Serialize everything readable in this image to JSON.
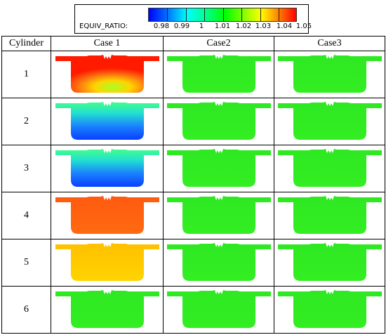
{
  "legend": {
    "title": "EQUIV_RATIO:",
    "labels": [
      "0.98",
      "0.99",
      "1",
      "1.01",
      "1.02",
      "1.03",
      "1.04",
      "1.05"
    ]
  },
  "table": {
    "headers": [
      "Cylinder",
      "Case 1",
      "Case2",
      "Case3"
    ],
    "rows": [
      {
        "cylinder": "1",
        "case1": "red-yellow",
        "case2": "green",
        "case3": "green"
      },
      {
        "cylinder": "2",
        "case1": "cyan-blue",
        "case2": "green",
        "case3": "green"
      },
      {
        "cylinder": "3",
        "case1": "cyan-blue",
        "case2": "green",
        "case3": "green"
      },
      {
        "cylinder": "4",
        "case1": "orange",
        "case2": "green",
        "case3": "green"
      },
      {
        "cylinder": "5",
        "case1": "yellow",
        "case2": "green",
        "case3": "green"
      },
      {
        "cylinder": "6",
        "case1": "green",
        "case2": "green",
        "case3": "green"
      }
    ]
  },
  "colors": {
    "green": "#33ee22",
    "red": "#ff1a00",
    "orange": "#ff6a10",
    "yellow": "#ffd400",
    "cyan": "#22e0d0",
    "blue": "#0a40ff"
  }
}
